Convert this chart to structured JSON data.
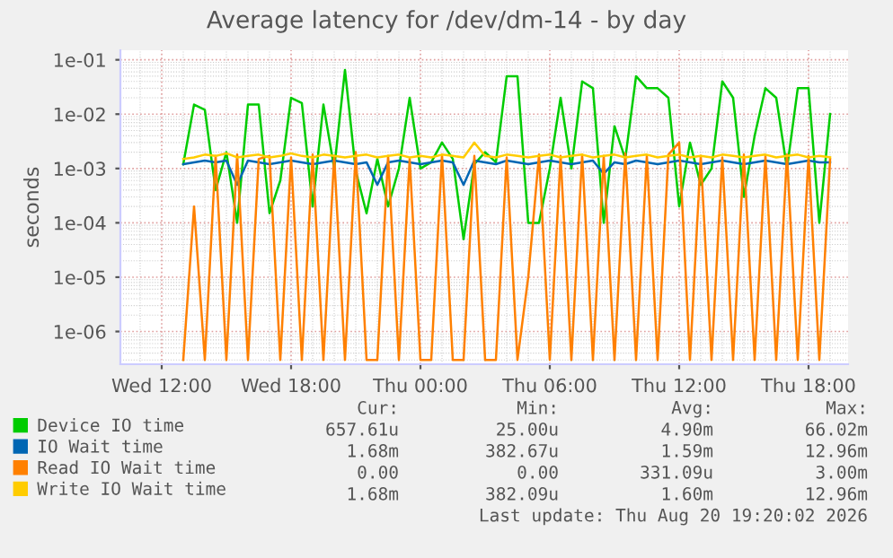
{
  "chart_data": {
    "type": "line",
    "title": "Average latency for /dev/dm-14 - by day",
    "ylabel": "seconds",
    "log": "y",
    "grid": true,
    "legend": "bottom",
    "marker": "none",
    "line_style": "solid",
    "xlim": [
      "2026-08-19T10:05",
      "2026-08-20T19:50"
    ],
    "xticks": [
      {
        "value": "2026-08-19T12:00",
        "label": "Wed 12:00"
      },
      {
        "value": "2026-08-19T18:00",
        "label": "Wed 18:00"
      },
      {
        "value": "2026-08-20T00:00",
        "label": "Thu 00:00"
      },
      {
        "value": "2026-08-20T06:00",
        "label": "Thu 06:00"
      },
      {
        "value": "2026-08-20T12:00",
        "label": "Thu 12:00"
      },
      {
        "value": "2026-08-20T18:00",
        "label": "Thu 18:00"
      }
    ],
    "ylim": [
      2.5e-07,
      0.15
    ],
    "yticks": [
      {
        "value": 1e-06,
        "label": "1e-06"
      },
      {
        "value": 1e-05,
        "label": "1e-05"
      },
      {
        "value": 0.0001,
        "label": "1e-04"
      },
      {
        "value": 0.001,
        "label": "1e-03"
      },
      {
        "value": 0.01,
        "label": "1e-02"
      },
      {
        "value": 0.1,
        "label": "1e-01"
      }
    ],
    "x": [
      "2026-08-19T13:00",
      "2026-08-19T13:30",
      "2026-08-19T14:00",
      "2026-08-19T14:30",
      "2026-08-19T15:00",
      "2026-08-19T15:30",
      "2026-08-19T16:00",
      "2026-08-19T16:30",
      "2026-08-19T17:00",
      "2026-08-19T17:30",
      "2026-08-19T18:00",
      "2026-08-19T18:30",
      "2026-08-19T19:00",
      "2026-08-19T19:30",
      "2026-08-19T20:00",
      "2026-08-19T20:30",
      "2026-08-19T21:00",
      "2026-08-19T21:30",
      "2026-08-19T22:00",
      "2026-08-19T22:30",
      "2026-08-19T23:00",
      "2026-08-19T23:30",
      "2026-08-20T00:00",
      "2026-08-20T00:30",
      "2026-08-20T01:00",
      "2026-08-20T01:30",
      "2026-08-20T02:00",
      "2026-08-20T02:30",
      "2026-08-20T03:00",
      "2026-08-20T03:30",
      "2026-08-20T04:00",
      "2026-08-20T04:30",
      "2026-08-20T05:00",
      "2026-08-20T05:30",
      "2026-08-20T06:00",
      "2026-08-20T06:30",
      "2026-08-20T07:00",
      "2026-08-20T07:30",
      "2026-08-20T08:00",
      "2026-08-20T08:30",
      "2026-08-20T09:00",
      "2026-08-20T09:30",
      "2026-08-20T10:00",
      "2026-08-20T10:30",
      "2026-08-20T11:00",
      "2026-08-20T11:30",
      "2026-08-20T12:00",
      "2026-08-20T12:30",
      "2026-08-20T13:00",
      "2026-08-20T13:30",
      "2026-08-20T14:00",
      "2026-08-20T14:30",
      "2026-08-20T15:00",
      "2026-08-20T15:30",
      "2026-08-20T16:00",
      "2026-08-20T16:30",
      "2026-08-20T17:00",
      "2026-08-20T17:30",
      "2026-08-20T18:00",
      "2026-08-20T18:30",
      "2026-08-20T19:00"
    ],
    "series": [
      {
        "name": "Device IO time",
        "color": "#00cc00",
        "values": [
          0.0012,
          0.015,
          0.012,
          0.0004,
          0.002,
          0.0001,
          0.015,
          0.015,
          0.00015,
          0.0006,
          0.02,
          0.016,
          0.0002,
          0.015,
          0.001,
          0.065,
          0.0009,
          0.00015,
          0.0015,
          0.0002,
          0.001,
          0.02,
          0.001,
          0.0013,
          0.003,
          0.0015,
          5e-05,
          0.0012,
          0.002,
          0.0013,
          0.05,
          0.05,
          0.0001,
          0.0001,
          0.001,
          0.02,
          0.001,
          0.04,
          0.03,
          0.0001,
          0.006,
          0.0015,
          0.05,
          0.03,
          0.03,
          0.02,
          0.0002,
          0.003,
          0.0005,
          0.001,
          0.04,
          0.02,
          0.0003,
          0.004,
          0.03,
          0.02,
          0.001,
          0.03,
          0.03,
          0.0001,
          0.01
        ]
      },
      {
        "name": "IO Wait time",
        "color": "#0066b3",
        "values": [
          0.0012,
          0.0013,
          0.0014,
          0.0013,
          0.0014,
          0.0005,
          0.0014,
          0.0013,
          0.0012,
          0.0013,
          0.0014,
          0.0013,
          0.0012,
          0.0013,
          0.0014,
          0.0013,
          0.0012,
          0.0013,
          0.0005,
          0.0013,
          0.0014,
          0.0013,
          0.0012,
          0.0013,
          0.0014,
          0.0013,
          0.0005,
          0.0014,
          0.0013,
          0.0012,
          0.0014,
          0.0013,
          0.0012,
          0.0013,
          0.0014,
          0.0013,
          0.0012,
          0.0013,
          0.0014,
          0.0008,
          0.0013,
          0.0012,
          0.0014,
          0.0013,
          0.0012,
          0.0013,
          0.0014,
          0.0013,
          0.0012,
          0.0013,
          0.0014,
          0.0013,
          0.0012,
          0.0013,
          0.0014,
          0.0013,
          0.0012,
          0.0013,
          0.0014,
          0.0013,
          0.0013
        ]
      },
      {
        "name": "Read IO Wait time",
        "color": "#ff8000",
        "values": [
          3e-07,
          0.0002,
          3e-07,
          0.0017,
          3e-07,
          0.0018,
          3e-07,
          0.0015,
          0.0017,
          3e-07,
          0.0016,
          3e-07,
          0.0018,
          3e-07,
          0.0017,
          3e-07,
          0.002,
          3e-07,
          3e-07,
          0.0017,
          3e-07,
          0.0015,
          3e-07,
          3e-07,
          0.0018,
          3e-07,
          3e-07,
          0.0017,
          3e-07,
          3e-07,
          0.0016,
          3e-07,
          1e-05,
          0.0018,
          3e-07,
          0.0017,
          3e-07,
          0.0018,
          3e-07,
          0.0017,
          3e-07,
          0.0019,
          3e-07,
          0.0017,
          3e-07,
          0.0018,
          0.003,
          3e-07,
          0.0017,
          3e-07,
          0.0016,
          3e-07,
          0.0018,
          3e-07,
          0.0017,
          3e-07,
          0.0018,
          3e-07,
          0.0017,
          3e-07,
          0.0015
        ]
      },
      {
        "name": "Write IO Wait time",
        "color": "#ffcc00",
        "values": [
          0.0015,
          0.0016,
          0.0018,
          0.0017,
          0.0019,
          0.0016,
          0.0017,
          0.0018,
          0.0016,
          0.0017,
          0.0019,
          0.0017,
          0.0016,
          0.0018,
          0.0017,
          0.0016,
          0.0017,
          0.0018,
          0.0016,
          0.0017,
          0.0018,
          0.0016,
          0.0017,
          0.0016,
          0.0018,
          0.0017,
          0.0016,
          0.003,
          0.0017,
          0.0016,
          0.0018,
          0.0017,
          0.0016,
          0.0017,
          0.0018,
          0.0016,
          0.0017,
          0.0018,
          0.0016,
          0.0017,
          0.0018,
          0.0016,
          0.0017,
          0.0018,
          0.0016,
          0.0017,
          0.0018,
          0.0016,
          0.0017,
          0.0016,
          0.0018,
          0.0017,
          0.0016,
          0.0017,
          0.0018,
          0.0016,
          0.0017,
          0.0018,
          0.0016,
          0.0017,
          0.0016
        ]
      }
    ],
    "annotations": [
      "Cur:",
      "Min:",
      "Avg:",
      "Max:",
      "657.61u",
      "25.00u",
      "4.90m",
      "66.02m",
      "1.68m",
      "382.67u",
      "1.59m",
      "12.96m",
      "0.00",
      "0.00",
      "331.09u",
      "3.00m",
      "1.68m",
      "382.09u",
      "1.60m",
      "12.96m",
      "Last update: Thu Aug 20 19:20:02 2026"
    ]
  }
}
